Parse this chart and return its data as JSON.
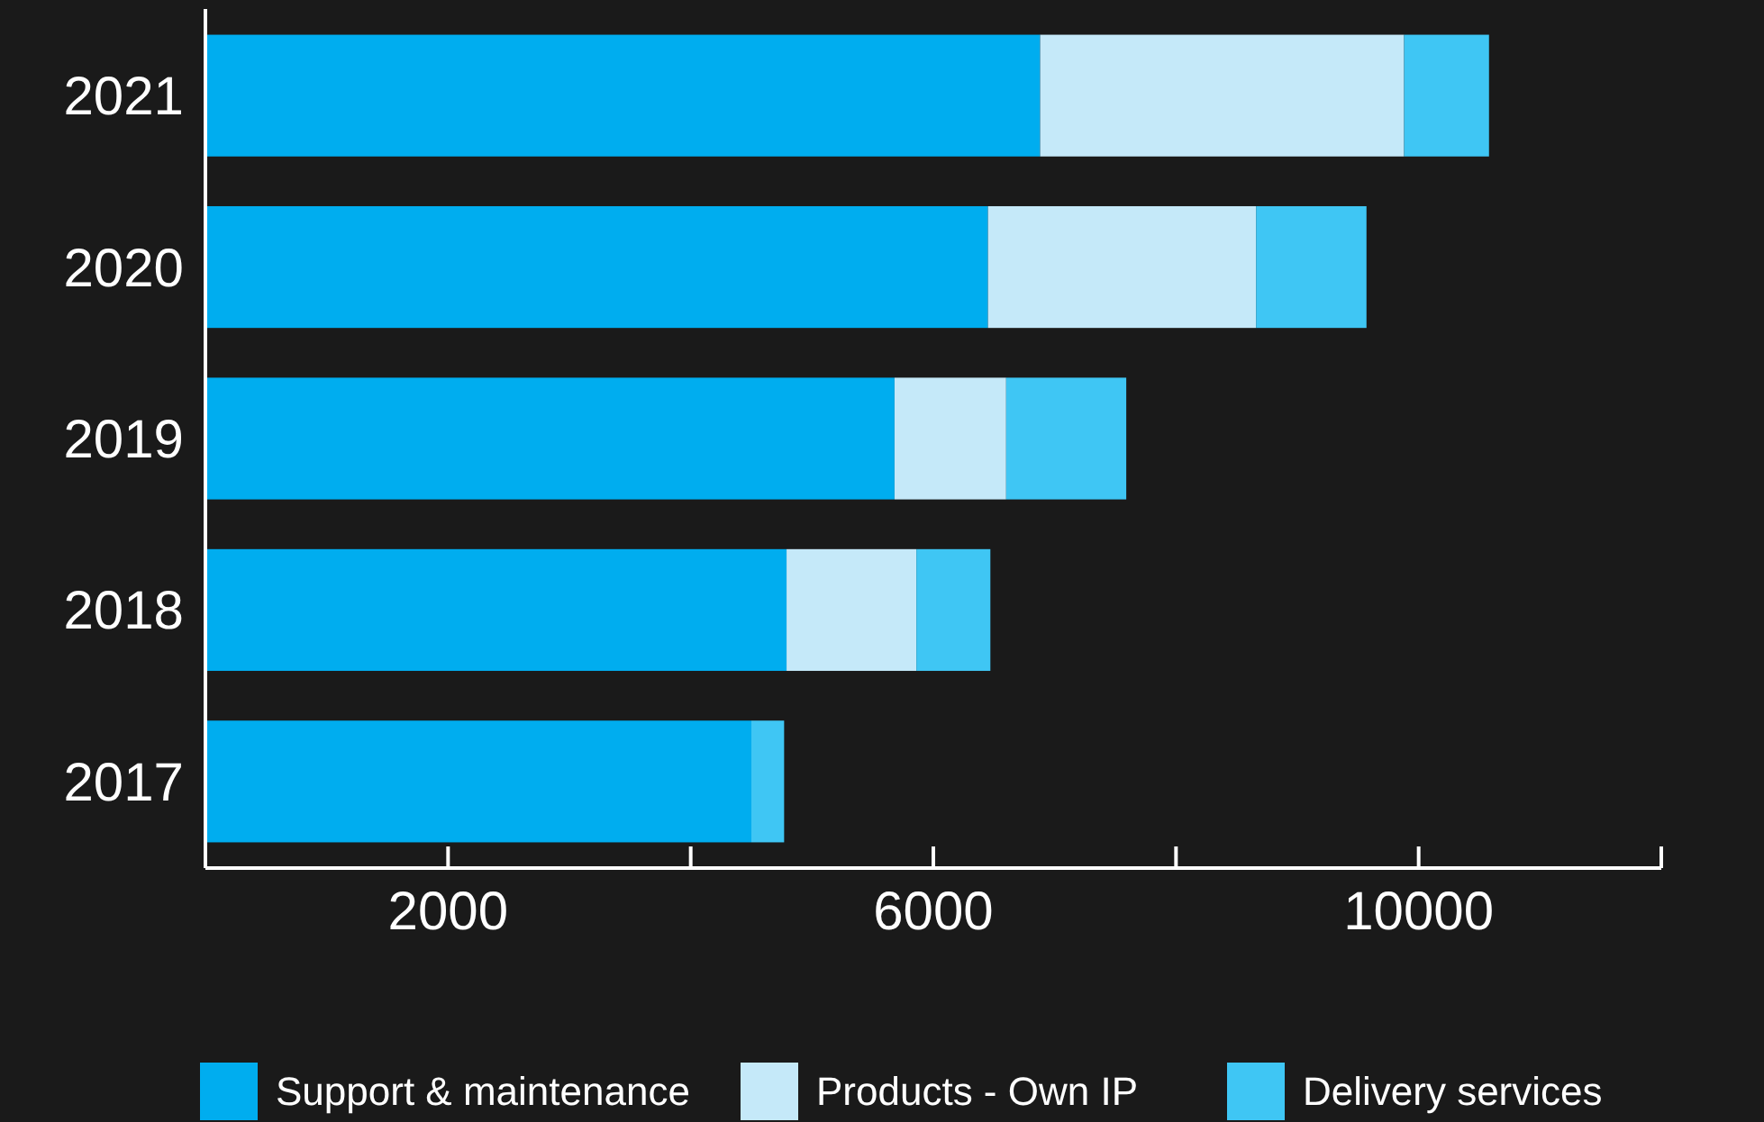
{
  "chart_data": {
    "type": "bar",
    "orientation": "horizontal",
    "stacked": true,
    "categories": [
      "2021",
      "2020",
      "2019",
      "2018",
      "2017"
    ],
    "series": [
      {
        "name": "Support & maintenance",
        "color": "#00adef",
        "values": [
          6880,
          6450,
          5680,
          4790,
          4500
        ]
      },
      {
        "name": "Products - Own IP",
        "color": "#c5e9f9",
        "values": [
          3000,
          2210,
          920,
          1070,
          0
        ]
      },
      {
        "name": "Delivery services",
        "color": "#3fc6f4",
        "values": [
          700,
          910,
          990,
          610,
          270
        ]
      }
    ],
    "xlim": [
      0,
      12000
    ],
    "xticks": [
      2000,
      {
        "value": 4000,
        "label": null
      },
      6000,
      {
        "value": 8000,
        "label": null
      },
      10000,
      {
        "value": 12000,
        "label": null
      }
    ],
    "grid": false,
    "legend": "bottom"
  }
}
